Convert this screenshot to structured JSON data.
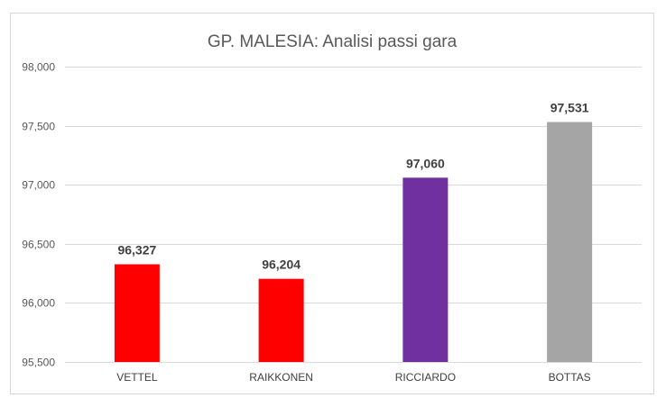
{
  "chart_data": {
    "type": "bar",
    "title": "GP. MALESIA: Analisi passi gara",
    "xlabel": "",
    "ylabel": "",
    "categories": [
      "VETTEL",
      "RAIKKONEN",
      "RICCIARDO",
      "BOTTAS"
    ],
    "values": [
      96.327,
      96.204,
      97.06,
      97.531
    ],
    "value_labels": [
      "96,327",
      "96,204",
      "97,060",
      "97,531"
    ],
    "colors": [
      "#ff0000",
      "#ff0000",
      "#7030a0",
      "#a5a5a5"
    ],
    "ylim": [
      95.5,
      98.0
    ],
    "yticks": [
      95.5,
      96.0,
      96.5,
      97.0,
      97.5,
      98.0
    ],
    "ytick_labels": [
      "95,500",
      "96,000",
      "96,500",
      "97,000",
      "97,500",
      "98,000"
    ],
    "grid": true,
    "legend": "none"
  }
}
